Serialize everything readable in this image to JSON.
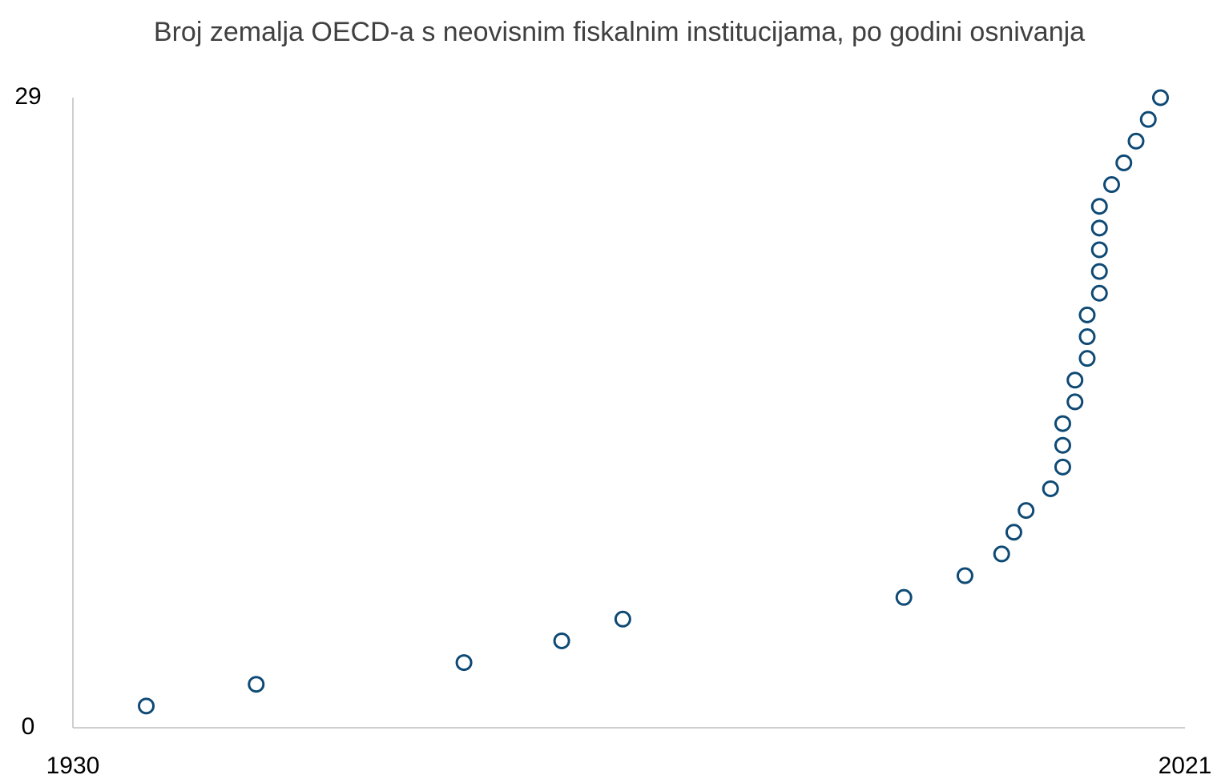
{
  "chart_data": {
    "type": "scatter",
    "title": "Broj zemalja OECD-a s neovisnim fiskalnim institucijama, po godini osnivanja",
    "x": [
      1936,
      1945,
      1962,
      1970,
      1975,
      1998,
      2003,
      2006,
      2007,
      2008,
      2010,
      2011,
      2011,
      2011,
      2012,
      2012,
      2013,
      2013,
      2013,
      2014,
      2014,
      2014,
      2014,
      2014,
      2015,
      2016,
      2017,
      2018,
      2019
    ],
    "values": [
      1,
      2,
      3,
      4,
      5,
      6,
      7,
      8,
      9,
      10,
      11,
      12,
      13,
      14,
      15,
      16,
      17,
      18,
      19,
      20,
      21,
      22,
      23,
      24,
      25,
      26,
      27,
      28,
      29
    ],
    "color": "#0e4a75",
    "xlim": [
      1930,
      2021
    ],
    "xticks": [
      1930,
      2021
    ],
    "ylim": [
      0,
      29
    ],
    "yticks": [
      0,
      29
    ]
  }
}
